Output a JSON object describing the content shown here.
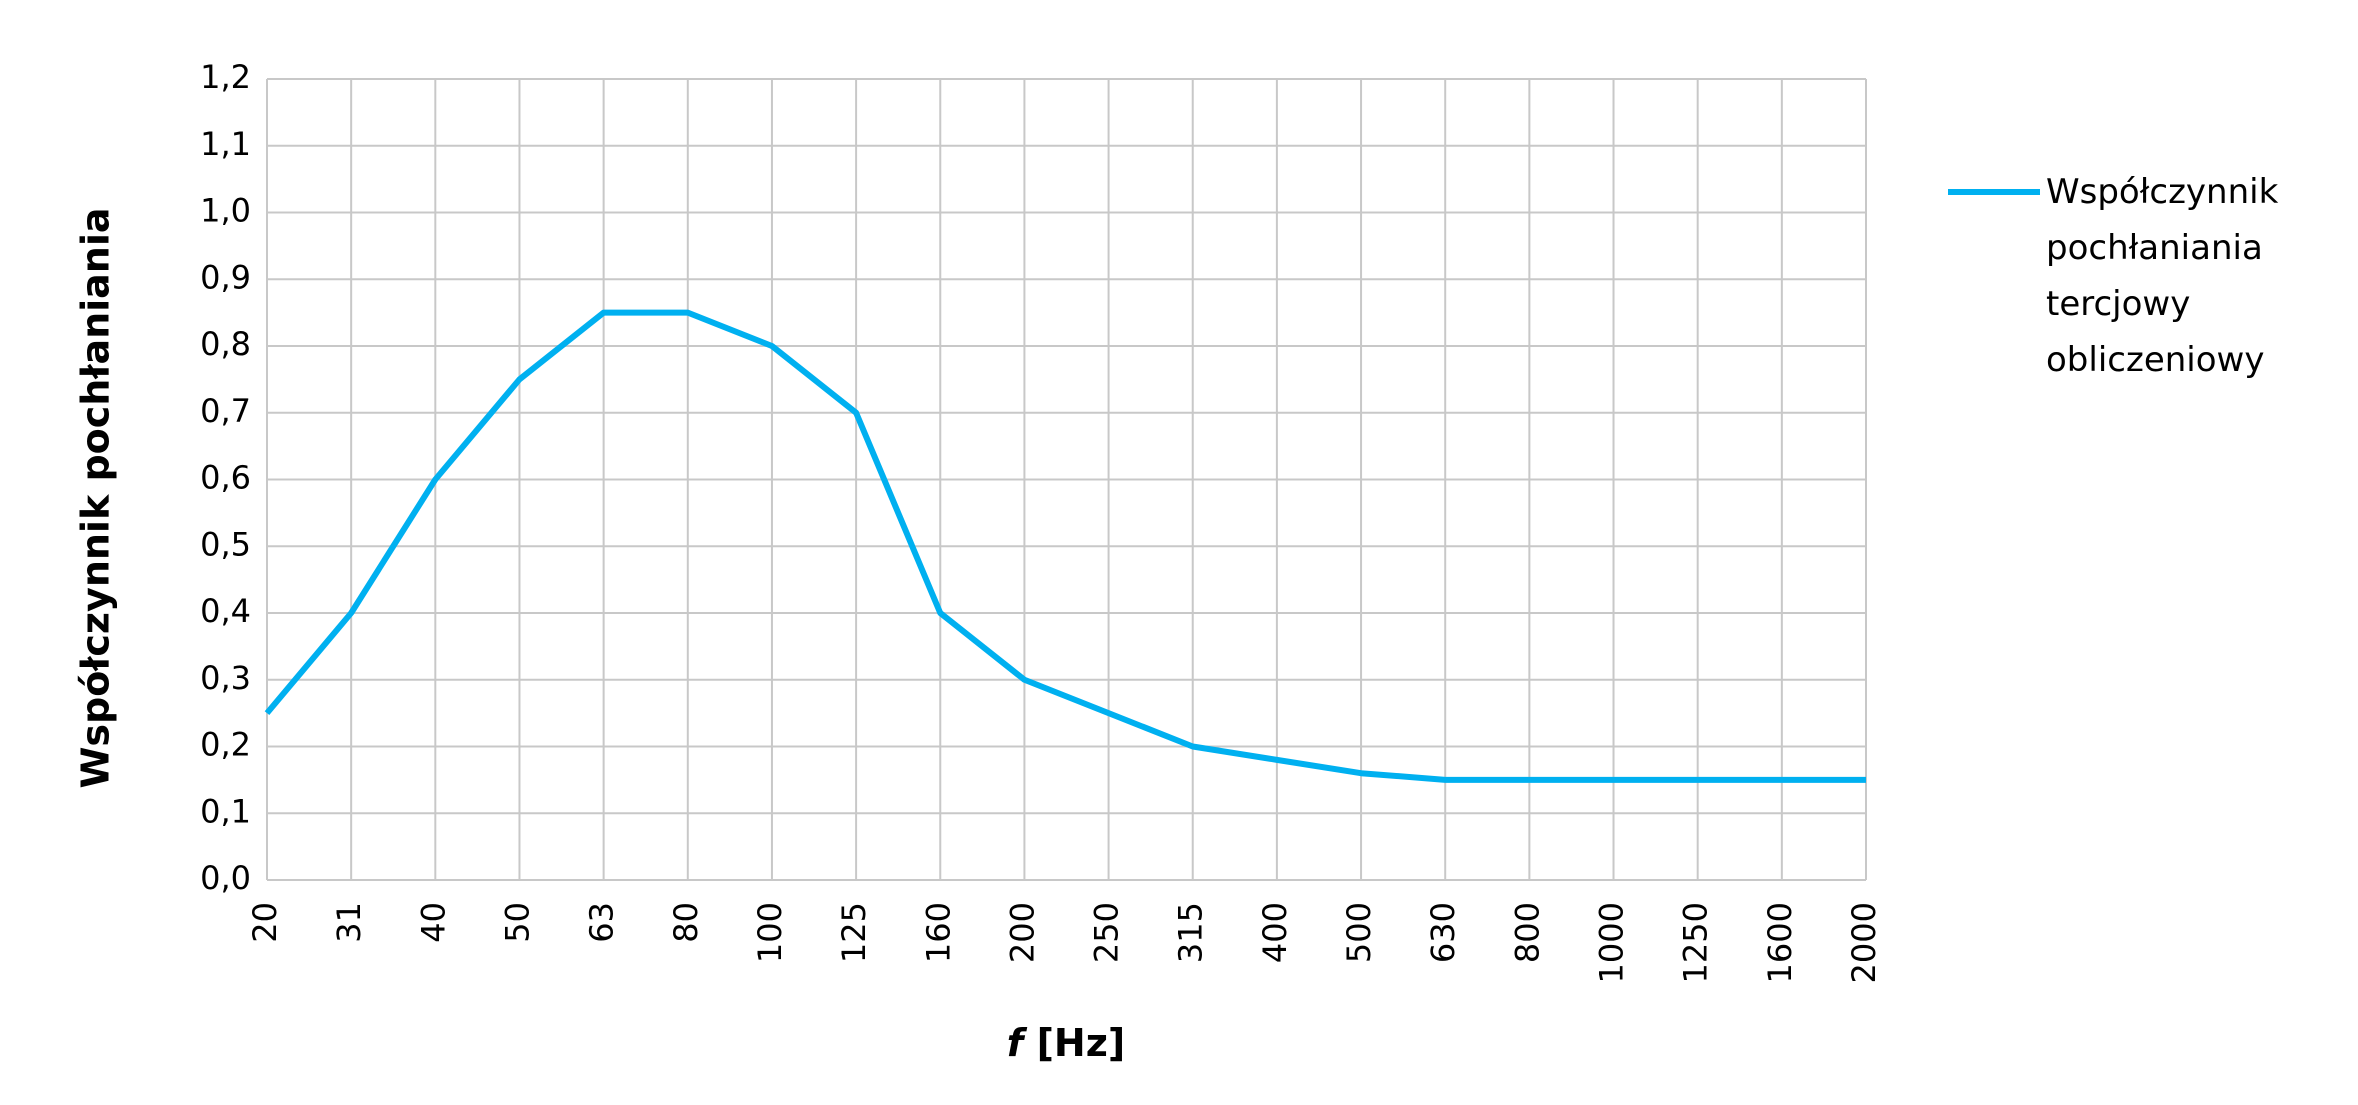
{
  "chart_data": {
    "type": "line",
    "y_label": "Współczynnik pochłaniania",
    "x_label_symbol": "f",
    "x_label_unit": "[Hz]",
    "categories": [
      "20",
      "31",
      "40",
      "50",
      "63",
      "80",
      "100",
      "125",
      "160",
      "200",
      "250",
      "315",
      "400",
      "500",
      "630",
      "800",
      "1000",
      "1250",
      "1600",
      "2000"
    ],
    "series": [
      {
        "name": "Współczynnik pochłaniania tercjowy obliczeniowy",
        "color": "#00b0f0",
        "values": [
          0.25,
          0.4,
          0.6,
          0.75,
          0.85,
          0.85,
          0.8,
          0.7,
          0.4,
          0.3,
          0.25,
          0.2,
          0.18,
          0.16,
          0.15,
          0.15,
          0.15,
          0.15,
          0.15,
          0.15
        ]
      }
    ],
    "ylim": [
      0,
      1.2
    ],
    "yticks": [
      {
        "value": 0,
        "label": "0,0"
      },
      {
        "value": 0.1,
        "label": "0,1"
      },
      {
        "value": 0.2,
        "label": "0,2"
      },
      {
        "value": 0.3,
        "label": "0,3"
      },
      {
        "value": 0.4,
        "label": "0,4"
      },
      {
        "value": 0.5,
        "label": "0,5"
      },
      {
        "value": 0.6,
        "label": "0,6"
      },
      {
        "value": 0.7,
        "label": "0,7"
      },
      {
        "value": 0.8,
        "label": "0,8"
      },
      {
        "value": 0.9,
        "label": "0,9"
      },
      {
        "value": 1.0,
        "label": "1,0"
      },
      {
        "value": 1.1,
        "label": "1,1"
      },
      {
        "value": 1.2,
        "label": "1,2"
      }
    ],
    "grid": true,
    "legend": "right"
  }
}
